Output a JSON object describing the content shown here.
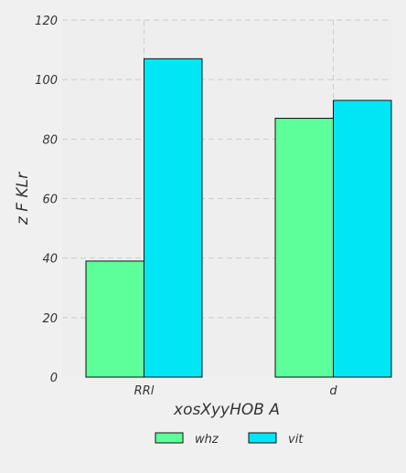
{
  "chart_data": {
    "type": "bar",
    "categories": [
      "RRl",
      "d"
    ],
    "series": [
      {
        "name": "whz",
        "values": [
          39,
          87
        ],
        "color": "#5cff9a"
      },
      {
        "name": "vit",
        "values": [
          107,
          93
        ],
        "color": "#00e6f5"
      }
    ],
    "xlabel": "xosXyyHOB A",
    "ylabel": "z F  KLr",
    "ylim": [
      0,
      120
    ],
    "yticks": [
      0,
      20,
      40,
      60,
      80,
      100,
      120
    ],
    "grid": true,
    "legend_position": "bottom-center",
    "background_color": "#eeeeee",
    "grid_color": "#cccccc"
  }
}
